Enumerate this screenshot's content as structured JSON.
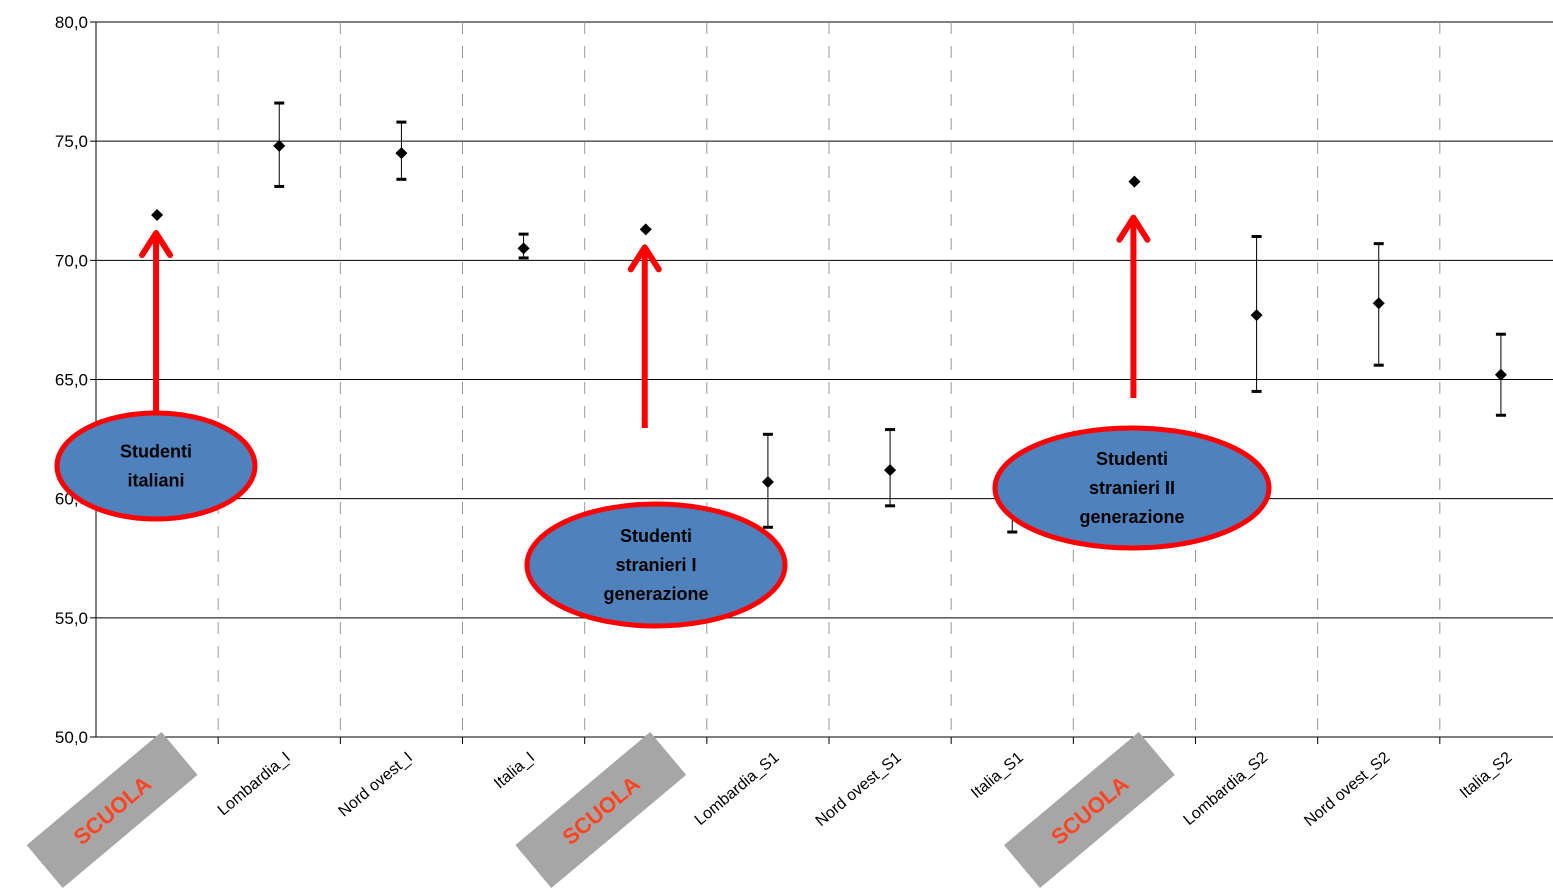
{
  "chart_data": {
    "type": "scatter",
    "title": "",
    "xlabel": "",
    "ylabel": "",
    "ylim": [
      50,
      80
    ],
    "yticks": [
      "50,0",
      "55,0",
      "60,0",
      "65,0",
      "70,0",
      "75,0",
      "80,0"
    ],
    "grid": "horizontal major, vertical dashed",
    "categories": [
      "SCUOLA",
      "Lombardia_I",
      "Nord ovest_I",
      "Italia_I",
      "SCUOLA",
      "Lombardia_S1",
      "Nord ovest_S1",
      "Italia_S1",
      "SCUOLA",
      "Lombardia_S2",
      "Nord ovest_S2",
      "Italia_S2"
    ],
    "category_labels_shown": [
      "",
      "Lombardia_I",
      "Nord ovest_I",
      "Italia_I",
      "",
      "Lombardia_S1",
      "Nord ovest_S1",
      "Italia_S1",
      "",
      "Lombardia_S2",
      "Nord ovest_S2",
      "Italia_S2"
    ],
    "values": [
      71.9,
      74.8,
      74.5,
      70.5,
      71.3,
      60.7,
      61.2,
      59.5,
      73.3,
      67.7,
      68.2,
      65.2
    ],
    "error_low": [
      null,
      73.1,
      73.4,
      70.1,
      null,
      58.8,
      59.7,
      58.6,
      null,
      64.5,
      65.6,
      63.5
    ],
    "error_high": [
      null,
      76.6,
      75.8,
      71.1,
      null,
      62.7,
      62.9,
      60.4,
      null,
      71.0,
      70.7,
      66.9
    ],
    "color": "#000000"
  },
  "annotations": {
    "scuola_tag": "SCUOLA",
    "bubbles": [
      {
        "lines": [
          "Studenti",
          "italiani"
        ]
      },
      {
        "lines": [
          "Studenti",
          "stranieri I",
          "generazione"
        ]
      },
      {
        "lines": [
          "Studenti",
          "stranieri II",
          "generazione"
        ]
      }
    ],
    "arrow_color": "#ff0000",
    "bubble_fill": "#4f81bd",
    "bubble_stroke": "#ff0000",
    "tag_fill": "#a6a6a6",
    "tag_text_color": "#ff4422"
  }
}
